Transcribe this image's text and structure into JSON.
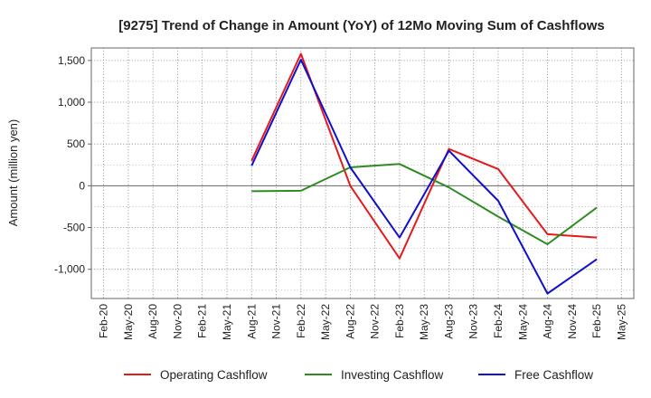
{
  "chart_data": {
    "type": "line",
    "title": "[9275]  Trend of Change in Amount (YoY) of 12Mo Moving Sum of Cashflows",
    "xlabel": "",
    "ylabel": "Amount (million yen)",
    "ylim": [
      -1350,
      1650
    ],
    "yticks": [
      1500,
      1000,
      500,
      0,
      -500,
      -1000
    ],
    "ytick_labels": [
      "1,500",
      "1,000",
      "500",
      "0",
      "-500",
      "-1,000"
    ],
    "categories": [
      "Feb-20",
      "May-20",
      "Aug-20",
      "Nov-20",
      "Feb-21",
      "May-21",
      "Aug-21",
      "Nov-21",
      "Feb-22",
      "May-22",
      "Aug-22",
      "Nov-22",
      "Feb-23",
      "May-23",
      "Aug-23",
      "Nov-23",
      "Feb-24",
      "May-24",
      "Aug-24",
      "Nov-24",
      "Feb-25",
      "May-25"
    ],
    "grid": true,
    "legend_position": "bottom",
    "series": [
      {
        "name": "Operating Cashflow",
        "color": "#e41a1c",
        "values": [
          null,
          null,
          null,
          null,
          null,
          null,
          300,
          null,
          1580,
          null,
          0,
          null,
          -870,
          null,
          440,
          null,
          200,
          null,
          -580,
          null,
          -620,
          null
        ]
      },
      {
        "name": "Investing Cashflow",
        "color": "#2e8b22",
        "values": [
          null,
          null,
          null,
          null,
          null,
          null,
          -65,
          null,
          -60,
          null,
          220,
          null,
          260,
          null,
          -20,
          null,
          -370,
          null,
          -700,
          null,
          -260,
          null
        ]
      },
      {
        "name": "Free Cashflow",
        "color": "#1010cc",
        "values": [
          null,
          null,
          null,
          null,
          null,
          null,
          240,
          null,
          1510,
          null,
          220,
          null,
          -620,
          null,
          420,
          null,
          -180,
          null,
          -1290,
          null,
          -880,
          null
        ]
      }
    ]
  }
}
